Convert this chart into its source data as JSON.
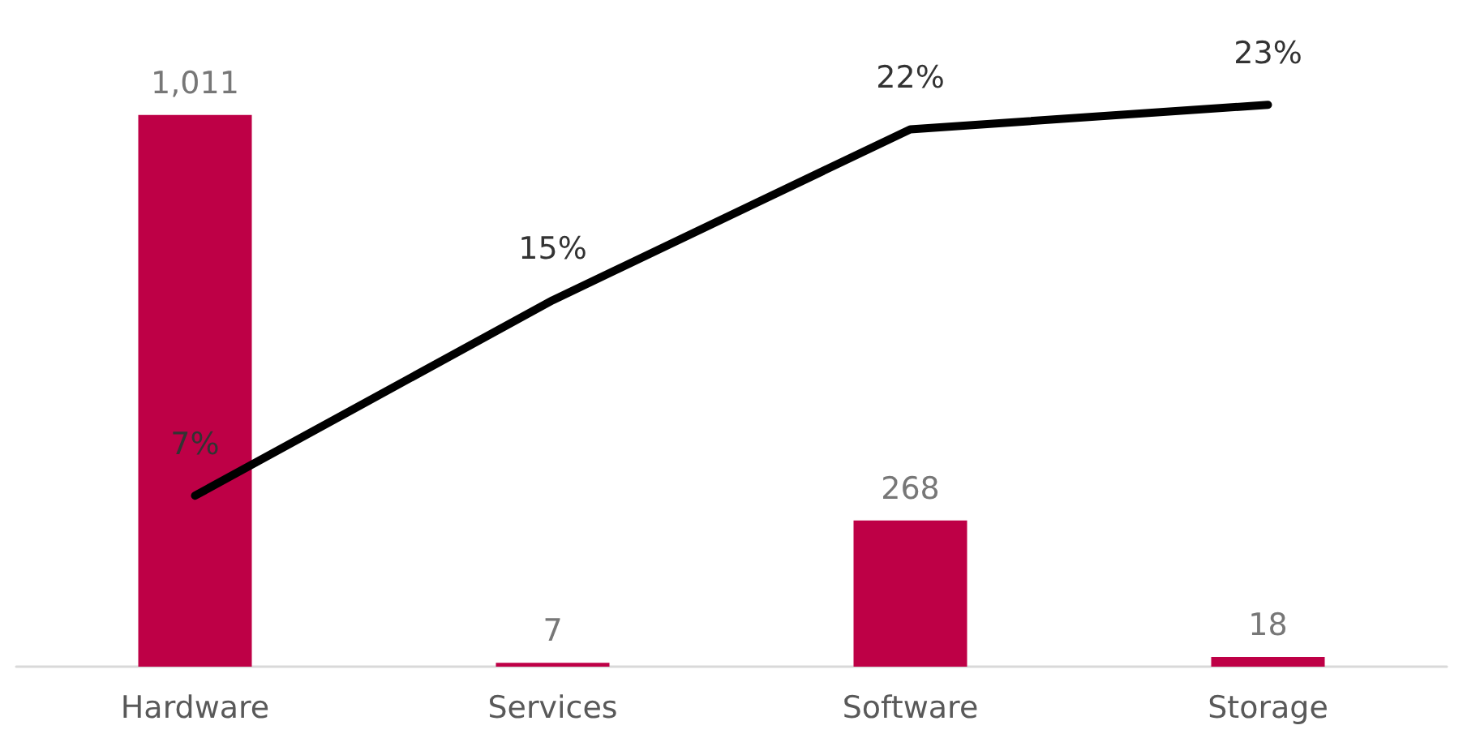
{
  "chart_data": {
    "type": "bar",
    "categories": [
      "Hardware",
      "Services",
      "Software",
      "Storage"
    ],
    "series": [
      {
        "color": "#be0046",
        "values": [
          1011,
          7,
          268,
          18
        ],
        "value_labels": [
          "1,011",
          "7",
          "268",
          "18"
        ]
      },
      {
        "type": "line",
        "axis": "y2",
        "color": "#000000",
        "values": [
          7,
          15,
          22,
          23
        ],
        "value_labels": [
          "7%",
          "15%",
          "22%",
          "23%"
        ]
      }
    ],
    "grid": false,
    "line_style": "solid"
  }
}
